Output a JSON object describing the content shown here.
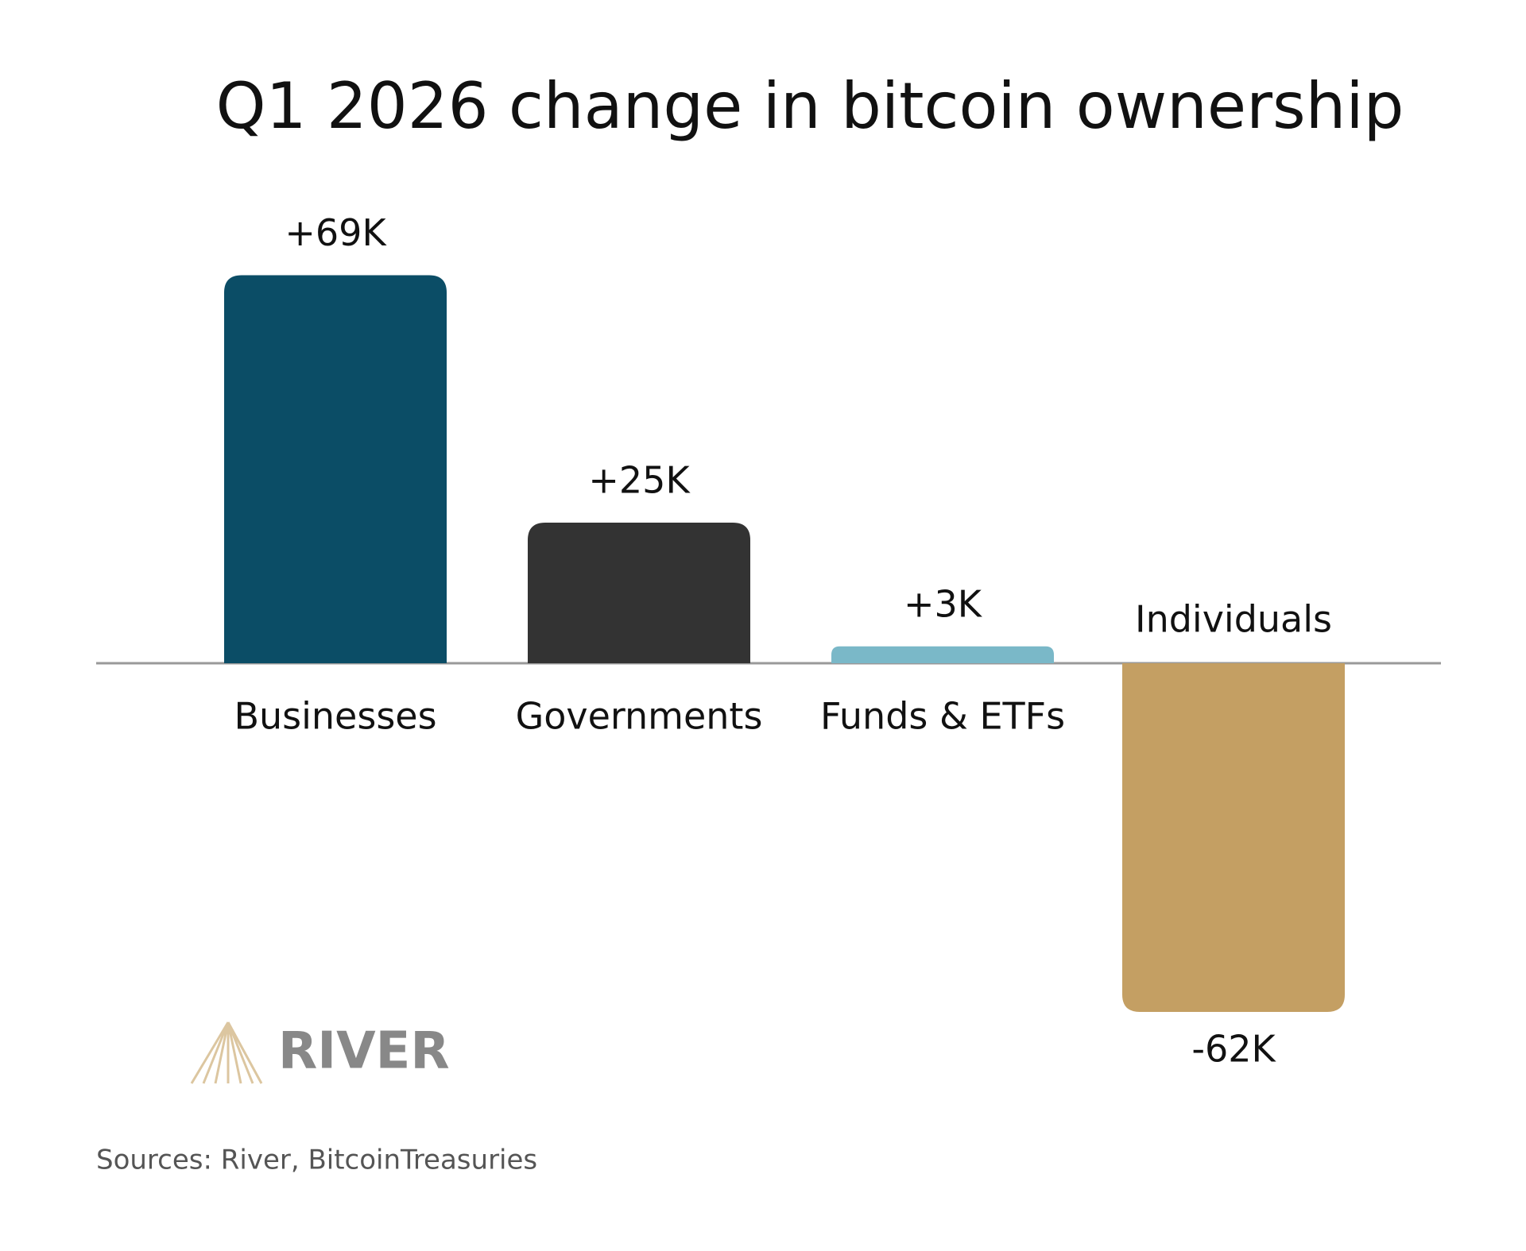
{
  "chart_data": {
    "type": "bar",
    "title": "Q1 2026 change in bitcoin ownership",
    "categories": [
      "Businesses",
      "Governments",
      "Funds & ETFs",
      "Individuals"
    ],
    "values": [
      69,
      25,
      3,
      -62
    ],
    "value_labels": [
      "+69K",
      "+25K",
      "+3K",
      "-62K"
    ],
    "colors": [
      "#0b4d66",
      "#333333",
      "#7ab8c8",
      "#c49f63"
    ],
    "source": "Sources: River, BitcoinTreasuries",
    "logo": "RIVER"
  }
}
